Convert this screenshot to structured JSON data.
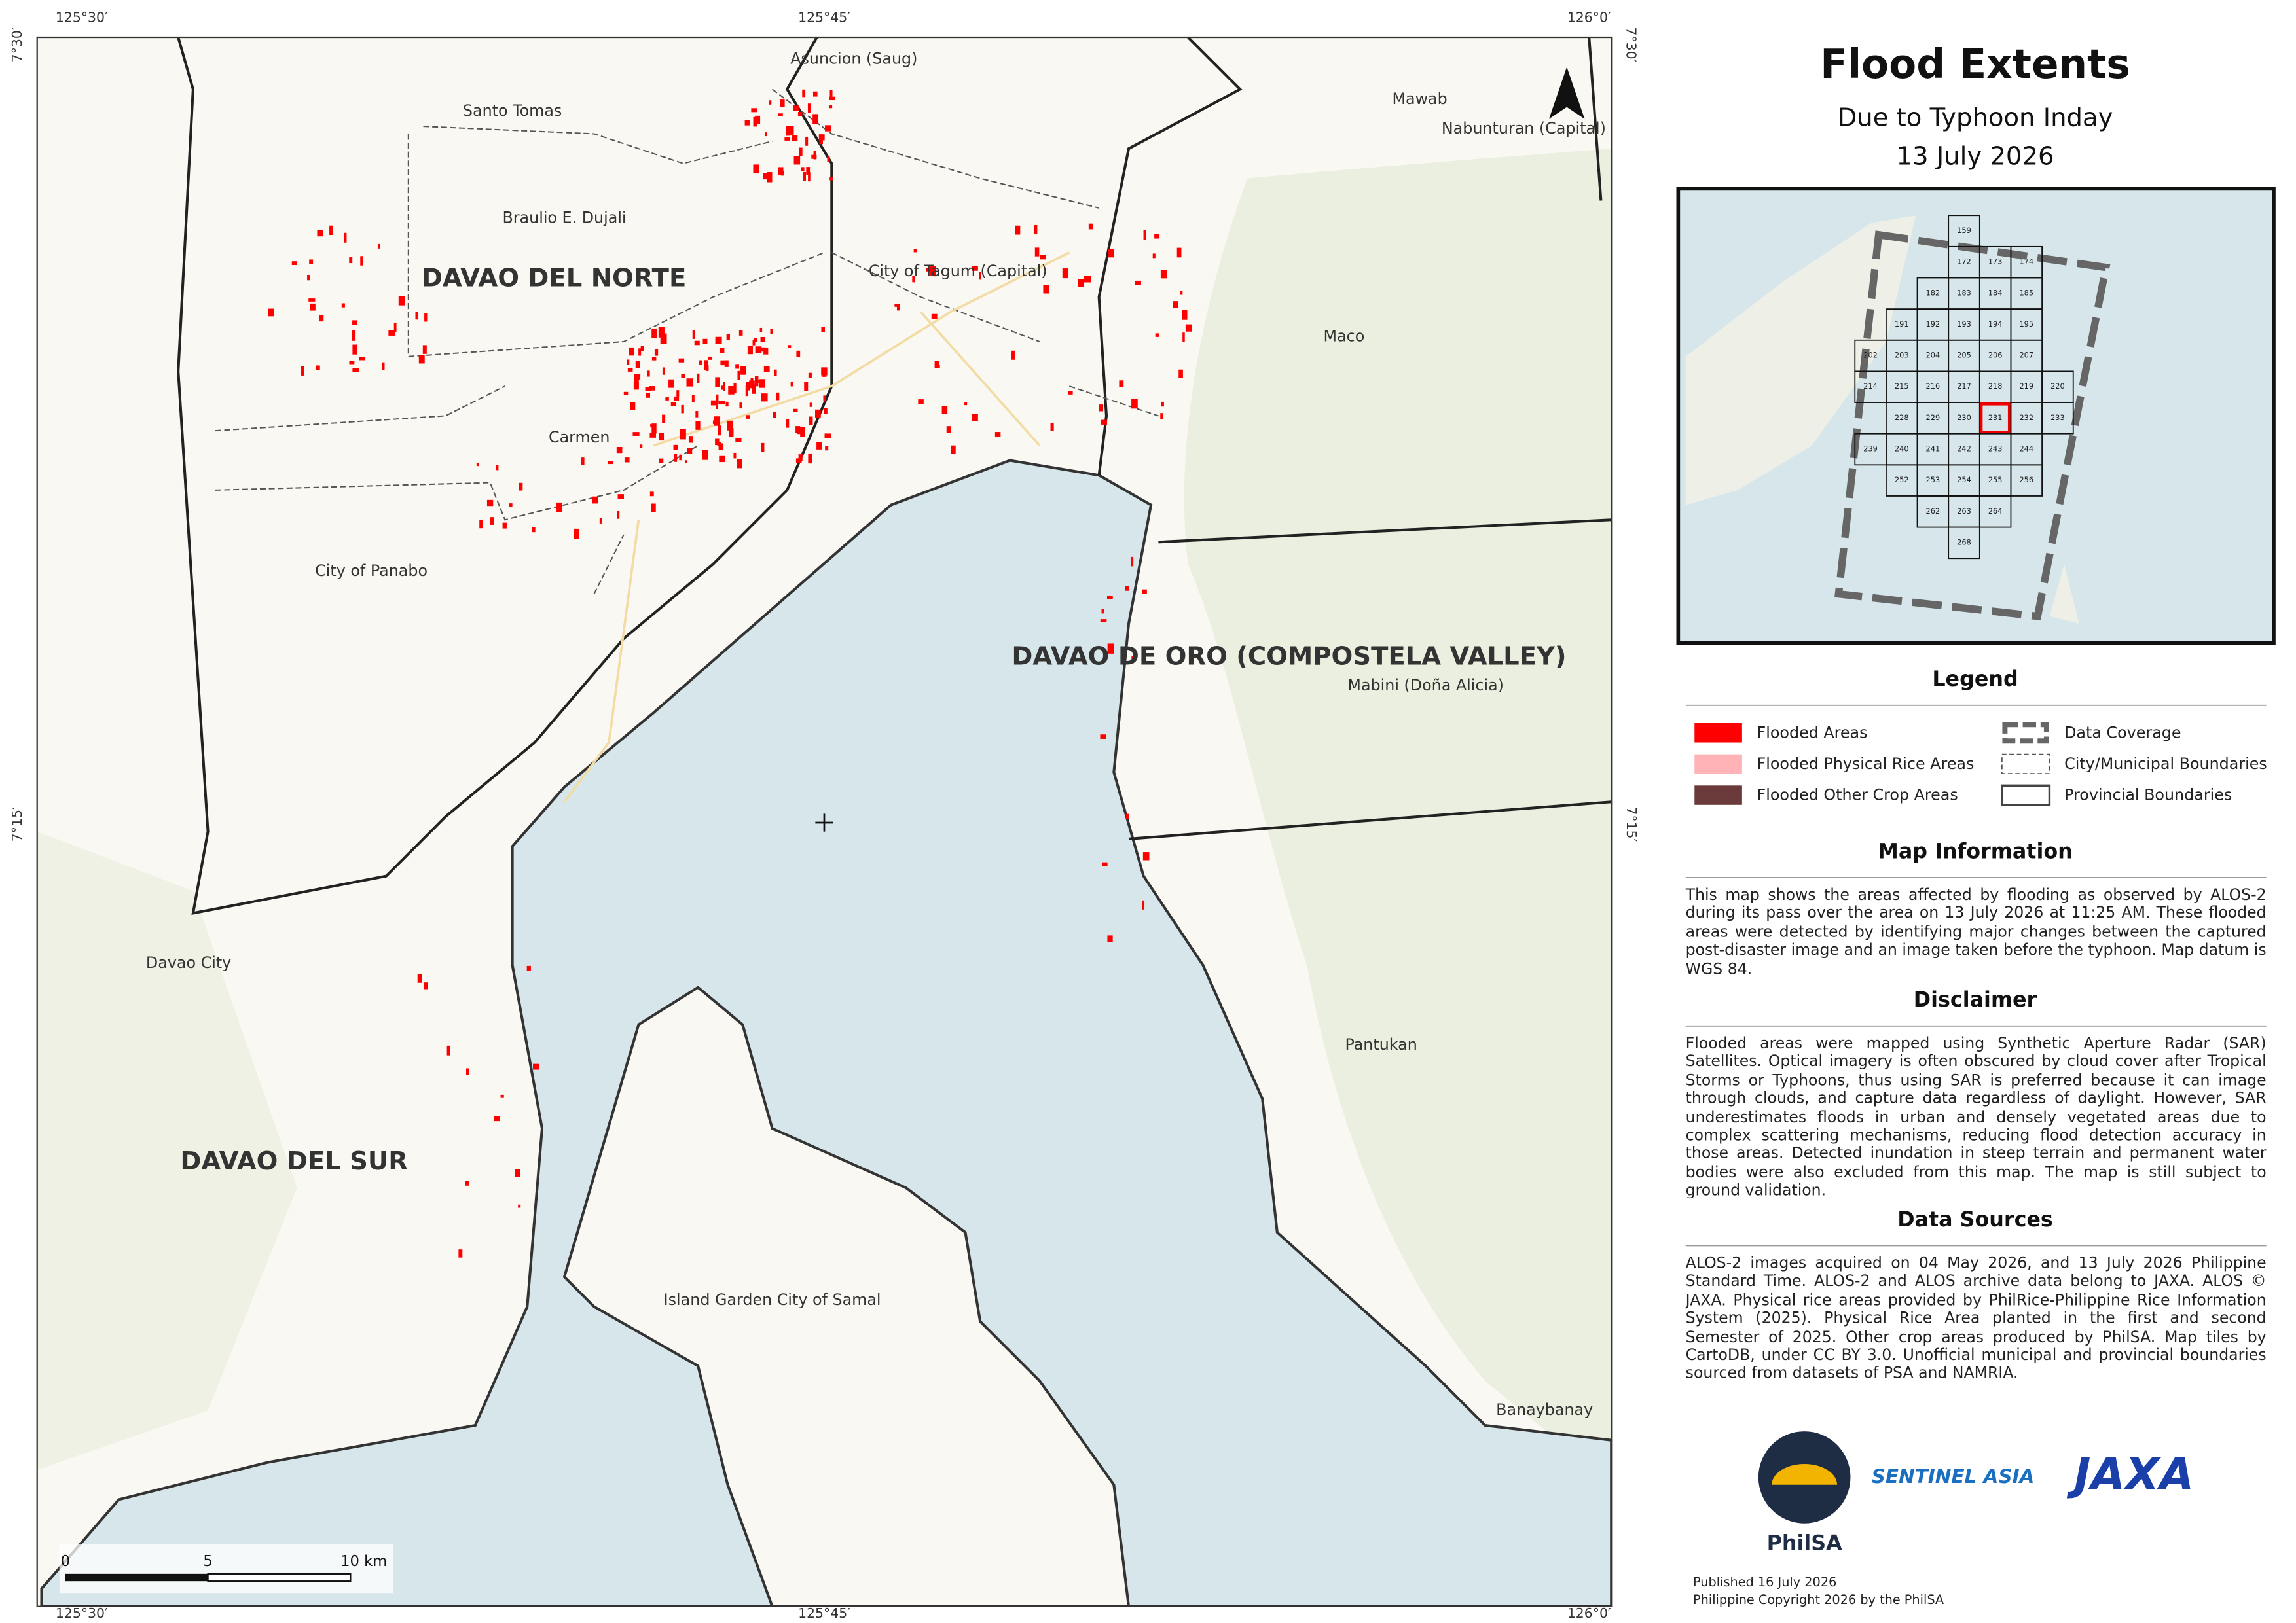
{
  "map": {
    "provinces": [
      "DAVAO DEL NORTE",
      "DAVAO DE ORO (COMPOSTELA VALLEY)",
      "DAVAO DEL SUR"
    ],
    "places": [
      "Asuncion (Saug)",
      "Santo Tomas",
      "Mawab",
      "Nabunturan (Capital)",
      "Braulio E. Dujali",
      "City of Tagum (Capital)",
      "Maco",
      "Carmen",
      "City of Panabo",
      "Mabini (Doña Alicia)",
      "Davao City",
      "Pantukan",
      "Island Garden City of Samal",
      "Banaybanay"
    ],
    "longitudes": [
      "125°30′",
      "125°45′",
      "126°0′"
    ],
    "latitudes": [
      "7°30′",
      "7°15′"
    ],
    "scale_bar": [
      "0",
      "5",
      "10 km"
    ]
  },
  "panel": {
    "title": "Flood Extents",
    "subtitle": "Due to Typhoon Inday",
    "date": "13 July 2026",
    "inset_rows": [
      [
        "159"
      ],
      [
        "172",
        "173",
        "174"
      ],
      [
        "182",
        "183",
        "184",
        "185"
      ],
      [
        "191",
        "192",
        "193",
        "194",
        "195"
      ],
      [
        "202",
        "203",
        "204",
        "205",
        "206",
        "207"
      ],
      [
        "214",
        "215",
        "216",
        "217",
        "218",
        "219",
        "220"
      ],
      [
        "228",
        "229",
        "230",
        "231",
        "232",
        "233"
      ],
      [
        "239",
        "240",
        "241",
        "242",
        "243",
        "244"
      ],
      [
        "252",
        "253",
        "254",
        "255",
        "256"
      ],
      [
        "262",
        "263",
        "264"
      ],
      [
        "268"
      ]
    ],
    "highlight": "231",
    "legend": {
      "title": "Legend",
      "items": [
        {
          "label": "Flooded Areas",
          "color": "#ff0000"
        },
        {
          "label": "Flooded Physical Rice Areas",
          "color": "#ffb3b6"
        },
        {
          "label": "Flooded Other Crop Areas",
          "color": "#6b3a3a"
        },
        {
          "label": "Data Coverage"
        },
        {
          "label": "City/Municipal Boundaries"
        },
        {
          "label": "Provincial Boundaries"
        }
      ]
    },
    "sections": [
      {
        "title": "Map Information",
        "text": "This map shows the areas affected by flooding as observed by ALOS-2 during its pass over the area on 13 July 2026 at 11:25 AM. These flooded areas were detected by identifying major changes between the captured post-disaster image and an image taken before the typhoon. Map datum is WGS 84."
      },
      {
        "title": "Disclaimer",
        "text": "Flooded areas were mapped using Synthetic Aperture Radar (SAR) Satellites. Optical imagery is often obscured by cloud cover after Tropical Storms or Typhoons, thus using SAR is preferred because it can image through clouds, and capture data regardless of daylight. However, SAR underestimates floods in urban and densely vegetated areas due to complex scattering mechanisms, reducing flood detection accuracy in those areas. Detected inundation in steep terrain and permanent water bodies were also excluded from this map. The map is still subject to ground validation."
      },
      {
        "title": "Data Sources",
        "text": "ALOS-2 images acquired on 04 May 2026, and 13 July 2026 Philippine Standard Time. ALOS-2 and ALOS archive data belong to JAXA. ALOS © JAXA. Physical rice areas provided by PhilRice-Philippine Rice Information System (2025). Physical Rice Area planted in the first and second Semester of 2025. Other crop areas produced by PhilSA. Map tiles by CartoDB, under CC BY 3.0. Unofficial municipal and provincial boundaries sourced from datasets of PSA and NAMRIA."
      }
    ],
    "logos": [
      "PhilSA",
      "SENTINEL ASIA",
      "JAXA"
    ],
    "footer": [
      "Published 16 July 2026",
      "Philippine Copyright 2026 by the PhilSA"
    ]
  }
}
